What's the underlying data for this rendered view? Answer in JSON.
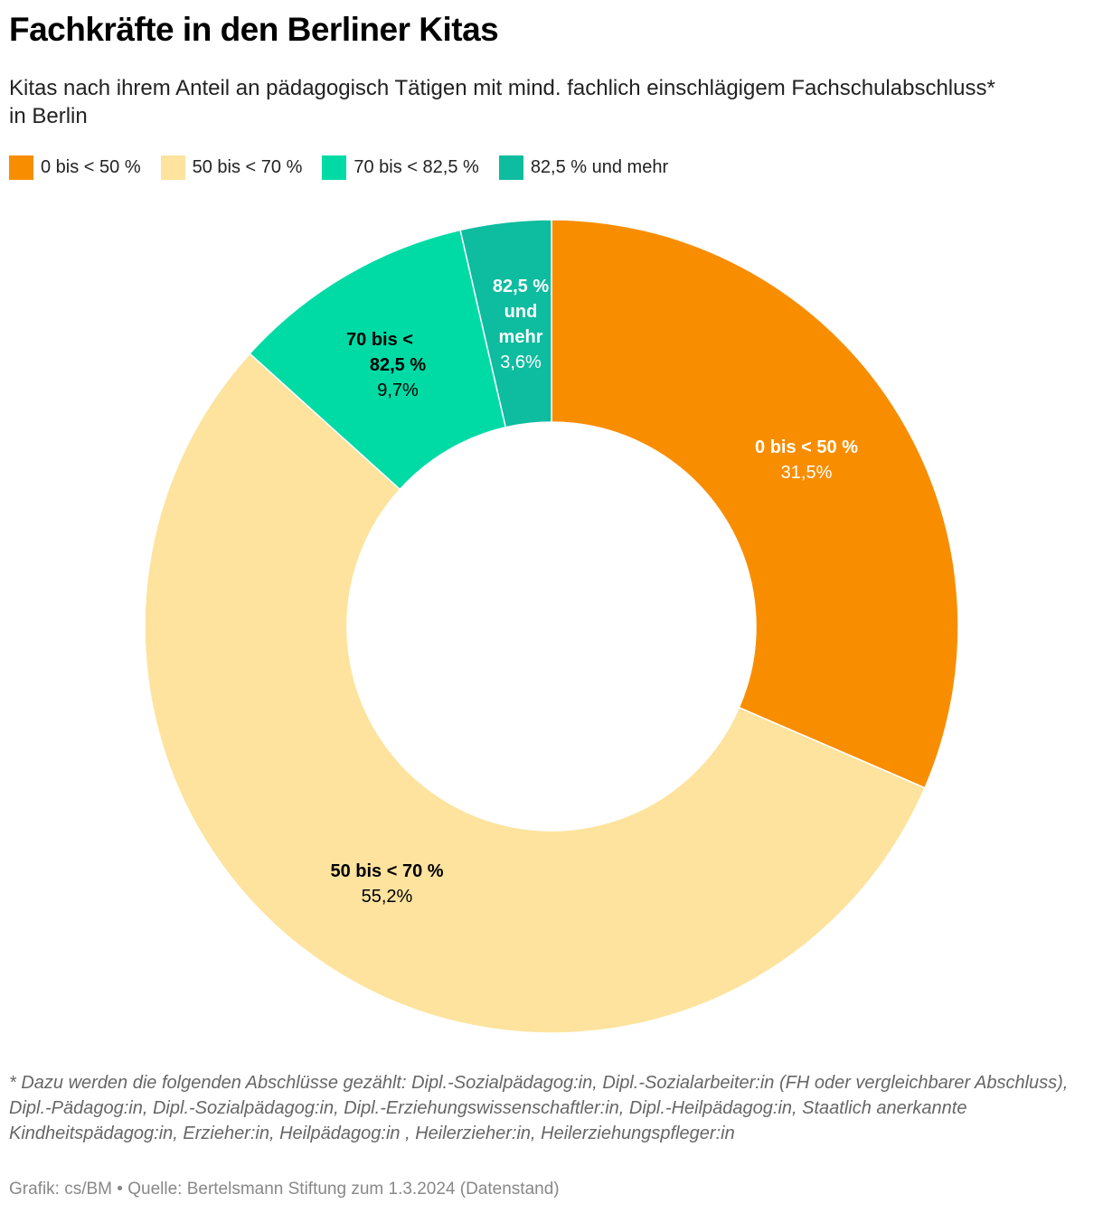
{
  "header": {
    "title": "Fachkräfte in den Berliner Kitas",
    "subtitle": "Kitas nach ihrem Anteil an pädagogisch Tätigen mit mind. fachlich einschlägigem Fachschulabschluss* in Berlin"
  },
  "legend": [
    {
      "label": "0 bis < 50 %",
      "color": "#F98D00"
    },
    {
      "label": "50 bis < 70 %",
      "color": "#FDE39E"
    },
    {
      "label": "70 bis < 82,5 %",
      "color": "#00DBA6"
    },
    {
      "label": "82,5 % und mehr",
      "color": "#0EBC9F"
    }
  ],
  "slice_labels": [
    {
      "name": "0 bis < 50 %",
      "value": "31,5%"
    },
    {
      "name": "50 bis < 70 %",
      "value": "55,2%"
    },
    {
      "name_line1": "70 bis <",
      "name_line2": "82,5 %",
      "value": "9,7%"
    },
    {
      "name_line1": "82,5 %",
      "name_line2": "und",
      "name_line3": "mehr",
      "value": "3,6%"
    }
  ],
  "chart_data": {
    "type": "pie",
    "subtype": "donut",
    "title": "Fachkräfte in den Berliner Kitas",
    "subtitle": "Kitas nach ihrem Anteil an pädagogisch Tätigen mit mind. fachlich einschlägigem Fachschulabschluss* in Berlin",
    "categories": [
      "0 bis < 50 %",
      "50 bis < 70 %",
      "70 bis < 82,5 %",
      "82,5 % und mehr"
    ],
    "values": [
      31.5,
      55.2,
      9.7,
      3.6
    ],
    "unit": "%",
    "colors": [
      "#F98D00",
      "#FDE39E",
      "#00DBA6",
      "#0EBC9F"
    ],
    "start_angle": "12 o'clock, clockwise",
    "legend_position": "top"
  },
  "footer": {
    "footnote": "* Dazu werden die folgenden Abschlüsse gezählt: Dipl.-Sozialpädagog:in, Dipl.-Sozialarbeiter:in (FH oder vergleichbarer Abschluss), Dipl.-Pädagog:in, Dipl.-Sozialpädagog:in, Dipl.-Erziehungswissenschaftler:in, Dipl.-Heilpädagog:in, Staatlich anerkannte Kindheitspädagog:in, Erzieher:in, Heilpädagog:in , Heilerzieher:in, Heilerziehungspfleger:in",
    "source": "Grafik: cs/BM • Quelle: Bertelsmann Stiftung zum 1.3.2024 (Datenstand)"
  }
}
